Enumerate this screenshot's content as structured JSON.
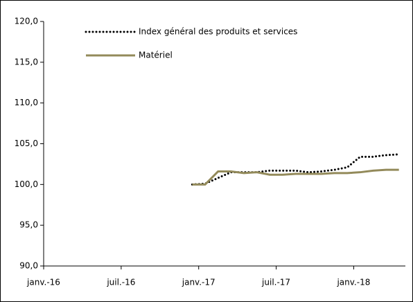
{
  "chart_data": {
    "type": "line",
    "categories": [
      "janv.-16",
      null,
      null,
      null,
      null,
      null,
      "juil.-16",
      null,
      null,
      null,
      null,
      null,
      "janv.-17",
      null,
      null,
      null,
      null,
      null,
      "juil.-17",
      null,
      null,
      null,
      null,
      null,
      "janv.-18",
      null,
      null,
      null
    ],
    "series": [
      {
        "name": "Index général des produits et services",
        "color": "#000000",
        "line_style": "dotted",
        "values": [
          null,
          null,
          null,
          null,
          null,
          null,
          null,
          null,
          null,
          null,
          null,
          100.0,
          100.1,
          100.8,
          101.5,
          101.5,
          101.5,
          101.7,
          101.7,
          101.7,
          101.5,
          101.6,
          101.8,
          102.1,
          103.4,
          103.4,
          103.6,
          103.7
        ]
      },
      {
        "name": "Matériel",
        "color": "#938a5a",
        "line_style": "solid",
        "values": [
          null,
          null,
          null,
          null,
          null,
          null,
          null,
          null,
          null,
          null,
          null,
          100.0,
          100.0,
          101.6,
          101.6,
          101.4,
          101.5,
          101.2,
          101.2,
          101.3,
          101.3,
          101.3,
          101.4,
          101.4,
          101.5,
          101.7,
          101.8,
          101.8
        ]
      }
    ],
    "ylim": [
      90,
      120
    ],
    "yticks": [
      {
        "value": 90,
        "label": "90,0"
      },
      {
        "value": 95,
        "label": "95,0"
      },
      {
        "value": 100,
        "label": "100,0"
      },
      {
        "value": 105,
        "label": "105,0"
      },
      {
        "value": 110,
        "label": "110,0"
      },
      {
        "value": 115,
        "label": "115,0"
      },
      {
        "value": 120,
        "label": "120,0"
      }
    ],
    "grid": false,
    "legend": "top"
  }
}
